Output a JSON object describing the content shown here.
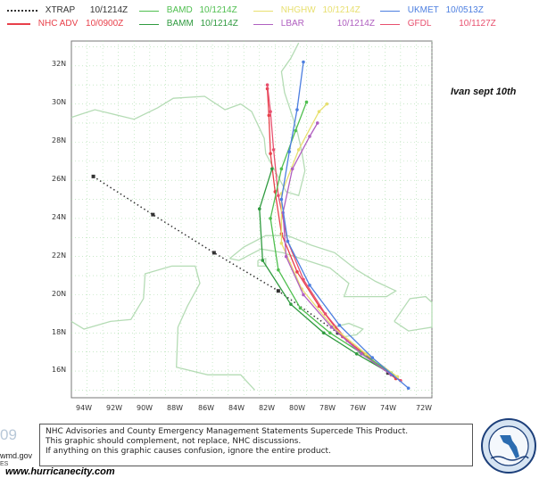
{
  "legend": [
    {
      "label": "XTRAP",
      "time": "10/1214Z",
      "color": "#333333",
      "dotted": true
    },
    {
      "label": "NHC ADV",
      "time": "10/0900Z",
      "color": "#e8404a"
    },
    {
      "label": "BAMD",
      "time": "10/1214Z",
      "color": "#4fbf4f"
    },
    {
      "label": "BAMM",
      "time": "10/1214Z",
      "color": "#2f9a3f"
    },
    {
      "label": "NHGHW",
      "time": "10/1214Z",
      "color": "#e8e070"
    },
    {
      "label": "LBAR",
      "time": "10/1214Z",
      "color": "#b060c0"
    },
    {
      "label": "UKMET",
      "time": "10/0513Z",
      "color": "#4d7fe0"
    },
    {
      "label": "GFDL",
      "time": "10/1127Z",
      "color": "#e8506e"
    }
  ],
  "map": {
    "lon_labels": [
      "94W",
      "92W",
      "90W",
      "88W",
      "86W",
      "84W",
      "82W",
      "80W",
      "78W",
      "76W",
      "74W",
      "72W"
    ],
    "lat_labels": [
      "32N",
      "30N",
      "28N",
      "26N",
      "24N",
      "22N",
      "20N",
      "18N",
      "16N"
    ],
    "grid_color": "#a8dca8",
    "land_color": "#b5dcb5",
    "tracks": [
      {
        "model": "XTRAP",
        "color": "#333333",
        "points": [
          [
            -74.8,
            15.9
          ],
          [
            -78.0,
            18.0
          ],
          [
            -81.8,
            20.2
          ],
          [
            -85.9,
            22.2
          ],
          [
            -89.8,
            24.2
          ],
          [
            -93.6,
            26.2
          ]
        ]
      },
      {
        "model": "NHC ADV",
        "color": "#e8404a",
        "points": [
          [
            -74.3,
            15.6
          ],
          [
            -76.0,
            16.7
          ],
          [
            -77.7,
            17.8
          ],
          [
            -79.2,
            19.4
          ],
          [
            -80.6,
            21.2
          ],
          [
            -81.6,
            23.2
          ],
          [
            -82.0,
            25.4
          ],
          [
            -82.3,
            27.4
          ],
          [
            -82.4,
            29.4
          ],
          [
            -82.5,
            30.8
          ]
        ]
      },
      {
        "model": "GFDL",
        "color": "#e8506e",
        "points": [
          [
            -74.0,
            15.5
          ],
          [
            -75.8,
            16.5
          ],
          [
            -77.4,
            17.6
          ],
          [
            -78.8,
            19.0
          ],
          [
            -80.2,
            20.8
          ],
          [
            -81.2,
            22.8
          ],
          [
            -81.8,
            25.2
          ],
          [
            -82.1,
            27.6
          ],
          [
            -82.3,
            29.6
          ],
          [
            -82.5,
            31.0
          ]
        ]
      },
      {
        "model": "BAMD",
        "color": "#4fbf4f",
        "points": [
          [
            -74.6,
            15.9
          ],
          [
            -76.6,
            17.0
          ],
          [
            -78.5,
            18.0
          ],
          [
            -80.4,
            19.3
          ],
          [
            -81.8,
            21.3
          ],
          [
            -82.3,
            24.0
          ],
          [
            -81.6,
            26.6
          ],
          [
            -80.7,
            28.6
          ],
          [
            -80.0,
            30.1
          ]
        ]
      },
      {
        "model": "BAMM",
        "color": "#2f9a3f",
        "points": [
          [
            -74.5,
            15.8
          ],
          [
            -76.8,
            16.9
          ],
          [
            -78.9,
            18.0
          ],
          [
            -81.0,
            19.5
          ],
          [
            -82.8,
            21.8
          ],
          [
            -83.0,
            24.5
          ],
          [
            -82.2,
            26.6
          ]
        ]
      },
      {
        "model": "NHGHW",
        "color": "#e8e070",
        "points": [
          [
            -74.2,
            15.7
          ],
          [
            -76.2,
            16.9
          ],
          [
            -78.3,
            18.3
          ],
          [
            -80.3,
            20.3
          ],
          [
            -81.6,
            22.7
          ],
          [
            -81.6,
            25.3
          ],
          [
            -80.5,
            27.6
          ],
          [
            -79.2,
            29.6
          ],
          [
            -78.7,
            30.0
          ]
        ]
      },
      {
        "model": "LBAR",
        "color": "#b060c0",
        "points": [
          [
            -74.6,
            15.8
          ],
          [
            -76.5,
            16.9
          ],
          [
            -78.4,
            18.3
          ],
          [
            -80.2,
            20.0
          ],
          [
            -81.3,
            22.0
          ],
          [
            -81.5,
            24.3
          ],
          [
            -80.9,
            26.6
          ],
          [
            -79.8,
            28.3
          ],
          [
            -79.3,
            29.0
          ]
        ]
      },
      {
        "model": "UKMET",
        "color": "#4d7fe0",
        "points": [
          [
            -73.5,
            15.1
          ],
          [
            -75.8,
            16.7
          ],
          [
            -77.9,
            18.4
          ],
          [
            -79.8,
            20.5
          ],
          [
            -81.2,
            22.8
          ],
          [
            -81.6,
            25.0
          ],
          [
            -81.1,
            27.5
          ],
          [
            -80.6,
            29.7
          ],
          [
            -80.2,
            32.2
          ]
        ]
      }
    ]
  },
  "annotation": "Ivan sept 10th",
  "disclaimer": {
    "line1": "NHC Advisories and County Emergency Management Statements Supercede This Product.",
    "line2": "This graphic should complement, not replace, NHC discussions.",
    "line3": "If anything on this graphic causes confusion, ignore the entire product."
  },
  "left_fragments": {
    "version": "09",
    "url": "wmd.gov",
    "es": "ES"
  },
  "site": "www.hurricanecity.com",
  "seal": {
    "name": "water-management-district-seal"
  }
}
